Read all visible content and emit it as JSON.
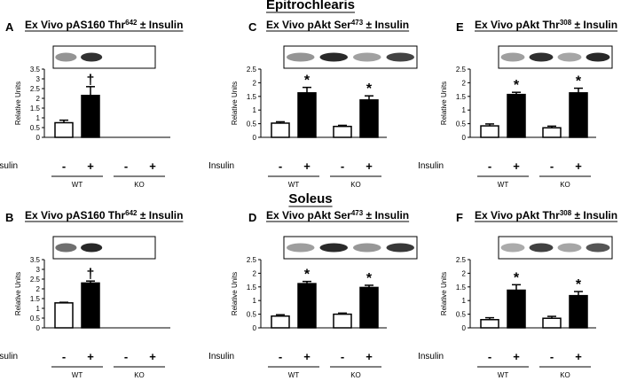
{
  "headings": [
    "Epitrochlearis",
    "Soleus"
  ],
  "chart_data": [
    {
      "type": "bar",
      "panel": "A",
      "title": [
        "Ex Vivo pAS160 Thr",
        "642",
        " ± Insulin"
      ],
      "ylabel": "Relative Units",
      "row_label": "Insulin",
      "categories": [
        "-",
        "+",
        "-",
        "+"
      ],
      "groups": [
        "WT",
        "KO"
      ],
      "colors": [
        "#ffffff",
        "#000000",
        "#ffffff",
        "#000000"
      ],
      "values": [
        0.75,
        2.15,
        null,
        null
      ],
      "errors": [
        0.13,
        0.45,
        null,
        null
      ],
      "markers": [
        null,
        "†",
        null,
        null
      ],
      "ylim": [
        0,
        3.5
      ],
      "yticks": [
        0,
        0.5,
        1,
        1.5,
        2,
        2.5,
        3,
        3.5
      ]
    },
    {
      "type": "bar",
      "panel": "C",
      "title": [
        "Ex Vivo pAkt Ser",
        "473",
        " ± Insulin"
      ],
      "ylabel": "Relative Units",
      "row_label": "Insulin",
      "categories": [
        "-",
        "+",
        "-",
        "+"
      ],
      "groups": [
        "WT",
        "KO"
      ],
      "colors": [
        "#ffffff",
        "#000000",
        "#ffffff",
        "#000000"
      ],
      "values": [
        0.52,
        1.63,
        0.4,
        1.37
      ],
      "errors": [
        0.05,
        0.2,
        0.04,
        0.15
      ],
      "markers": [
        null,
        "*",
        null,
        "*"
      ],
      "ylim": [
        0,
        2.5
      ],
      "yticks": [
        0,
        0.5,
        1,
        1.5,
        2,
        2.5
      ]
    },
    {
      "type": "bar",
      "panel": "E",
      "title": [
        "Ex Vivo pAkt Thr",
        "308",
        " ± Insulin"
      ],
      "ylabel": "Relative Units",
      "row_label": "Insulin",
      "categories": [
        "-",
        "+",
        "-",
        "+"
      ],
      "groups": [
        "WT",
        "KO"
      ],
      "colors": [
        "#ffffff",
        "#000000",
        "#ffffff",
        "#000000"
      ],
      "values": [
        0.42,
        1.57,
        0.35,
        1.63
      ],
      "errors": [
        0.07,
        0.08,
        0.06,
        0.17
      ],
      "markers": [
        null,
        "*",
        null,
        "*"
      ],
      "ylim": [
        0,
        2.5
      ],
      "yticks": [
        0,
        0.5,
        1,
        1.5,
        2,
        2.5
      ]
    },
    {
      "type": "bar",
      "panel": "B",
      "title": [
        "Ex Vivo pAS160 Thr",
        "642",
        " ± Insulin"
      ],
      "ylabel": "Relative Units",
      "row_label": "Insulin",
      "categories": [
        "-",
        "+",
        "-",
        "+"
      ],
      "groups": [
        "WT",
        "KO"
      ],
      "colors": [
        "#ffffff",
        "#000000",
        "#ffffff",
        "#000000"
      ],
      "values": [
        1.28,
        2.3,
        null,
        null
      ],
      "errors": [
        0.03,
        0.1,
        null,
        null
      ],
      "markers": [
        null,
        "†",
        null,
        null
      ],
      "ylim": [
        0,
        3.5
      ],
      "yticks": [
        0,
        0.5,
        1,
        1.5,
        2,
        2.5,
        3,
        3.5
      ]
    },
    {
      "type": "bar",
      "panel": "D",
      "title": [
        "Ex Vivo pAkt Ser",
        "473",
        " ± Insulin"
      ],
      "ylabel": "Relative Units",
      "row_label": "Insulin",
      "categories": [
        "-",
        "+",
        "-",
        "+"
      ],
      "groups": [
        "WT",
        "KO"
      ],
      "colors": [
        "#ffffff",
        "#000000",
        "#ffffff",
        "#000000"
      ],
      "values": [
        0.43,
        1.62,
        0.5,
        1.48
      ],
      "errors": [
        0.05,
        0.08,
        0.04,
        0.08
      ],
      "markers": [
        null,
        "*",
        null,
        "*"
      ],
      "ylim": [
        0,
        2.5
      ],
      "yticks": [
        0,
        0.5,
        1,
        1.5,
        2,
        2.5
      ]
    },
    {
      "type": "bar",
      "panel": "F",
      "title": [
        "Ex Vivo pAkt Thr",
        "308",
        " ± Insulin"
      ],
      "ylabel": "Relative Units",
      "row_label": "Insulin",
      "categories": [
        "-",
        "+",
        "-",
        "+"
      ],
      "groups": [
        "WT",
        "KO"
      ],
      "colors": [
        "#ffffff",
        "#000000",
        "#ffffff",
        "#000000"
      ],
      "values": [
        0.3,
        1.38,
        0.35,
        1.18
      ],
      "errors": [
        0.07,
        0.2,
        0.07,
        0.15
      ],
      "markers": [
        null,
        "*",
        null,
        "*"
      ],
      "ylim": [
        0,
        2.5
      ],
      "yticks": [
        0,
        0.5,
        1,
        1.5,
        2,
        2.5
      ]
    }
  ]
}
